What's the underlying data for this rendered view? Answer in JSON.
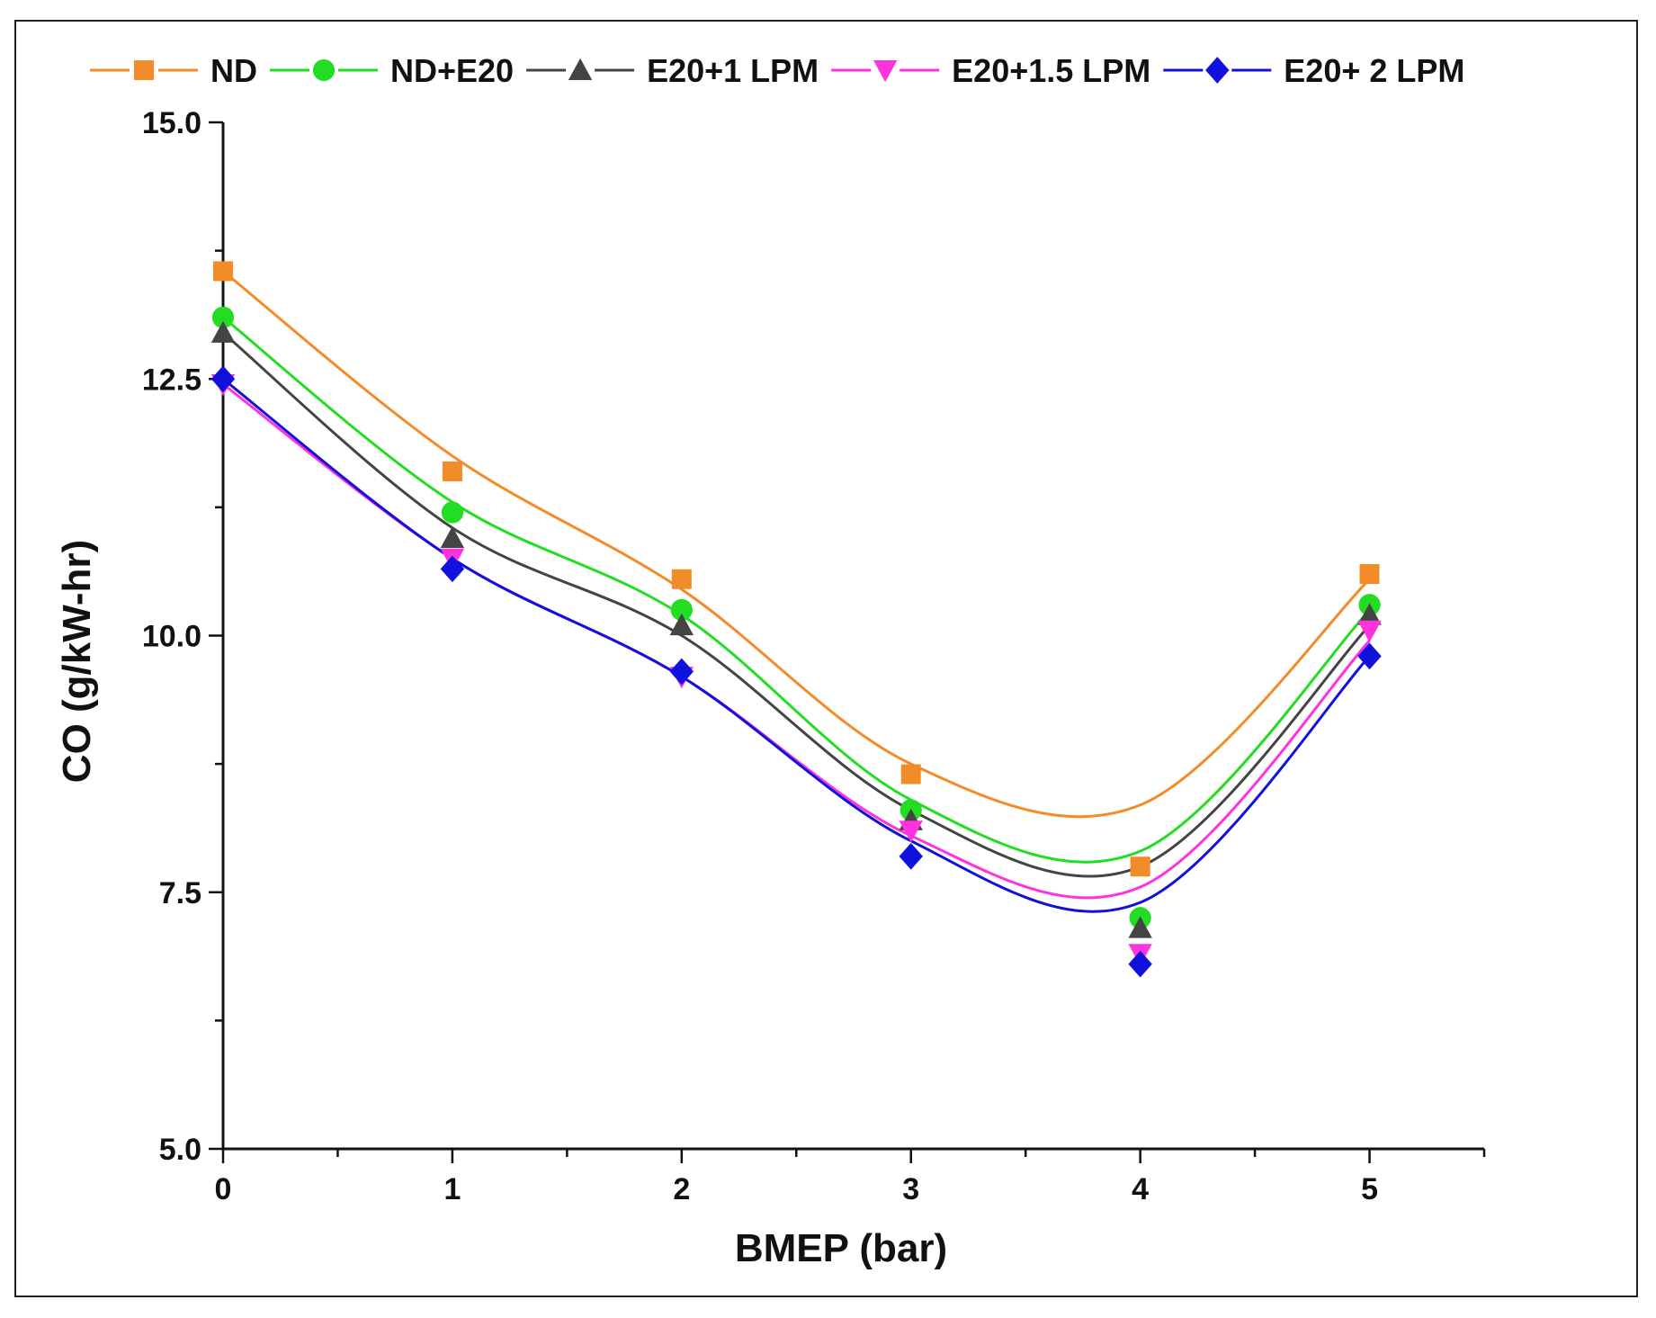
{
  "chart_data": {
    "type": "line",
    "xlabel": "BMEP (bar)",
    "ylabel": "CO (g/kW-hr)",
    "x": [
      0,
      1,
      2,
      3,
      4,
      5
    ],
    "xlim": [
      0,
      5.5
    ],
    "ylim": [
      5.0,
      15.0
    ],
    "x_ticks": [
      "0",
      "1",
      "2",
      "3",
      "4",
      "5"
    ],
    "y_ticks": [
      "5.0",
      "7.5",
      "10.0",
      "12.5",
      "15.0"
    ],
    "grid": false,
    "legend_position": "top",
    "curve": "smoothed fit",
    "series": [
      {
        "name": "ND",
        "color": "#f28c28",
        "marker": "square",
        "values": [
          13.55,
          11.6,
          10.55,
          8.65,
          7.75,
          10.6
        ],
        "fit": [
          13.55,
          11.75,
          10.45,
          8.75,
          8.35,
          10.55
        ]
      },
      {
        "name": "ND+E20",
        "color": "#22dd22",
        "marker": "circle",
        "values": [
          13.1,
          11.2,
          10.25,
          8.3,
          7.25,
          10.3
        ],
        "fit": [
          13.1,
          11.3,
          10.2,
          8.4,
          7.9,
          10.25
        ]
      },
      {
        "name": "E20+1 LPM",
        "color": "#444444",
        "marker": "triangle-up",
        "values": [
          12.95,
          10.95,
          10.1,
          8.2,
          7.15,
          10.2
        ],
        "fit": [
          12.95,
          11.05,
          10.0,
          8.3,
          7.75,
          10.1
        ]
      },
      {
        "name": "E20+1.5 LPM",
        "color": "#ff33dd",
        "marker": "triangle-down",
        "values": [
          12.45,
          10.75,
          9.6,
          8.1,
          6.9,
          10.05
        ],
        "fit": [
          12.45,
          10.75,
          9.6,
          8.05,
          7.55,
          9.95
        ]
      },
      {
        "name": "E20+ 2 LPM",
        "color": "#1111dd",
        "marker": "diamond",
        "values": [
          12.5,
          10.65,
          9.65,
          7.85,
          6.8,
          9.8
        ],
        "fit": [
          12.5,
          10.75,
          9.6,
          8.0,
          7.4,
          9.8
        ]
      }
    ]
  }
}
